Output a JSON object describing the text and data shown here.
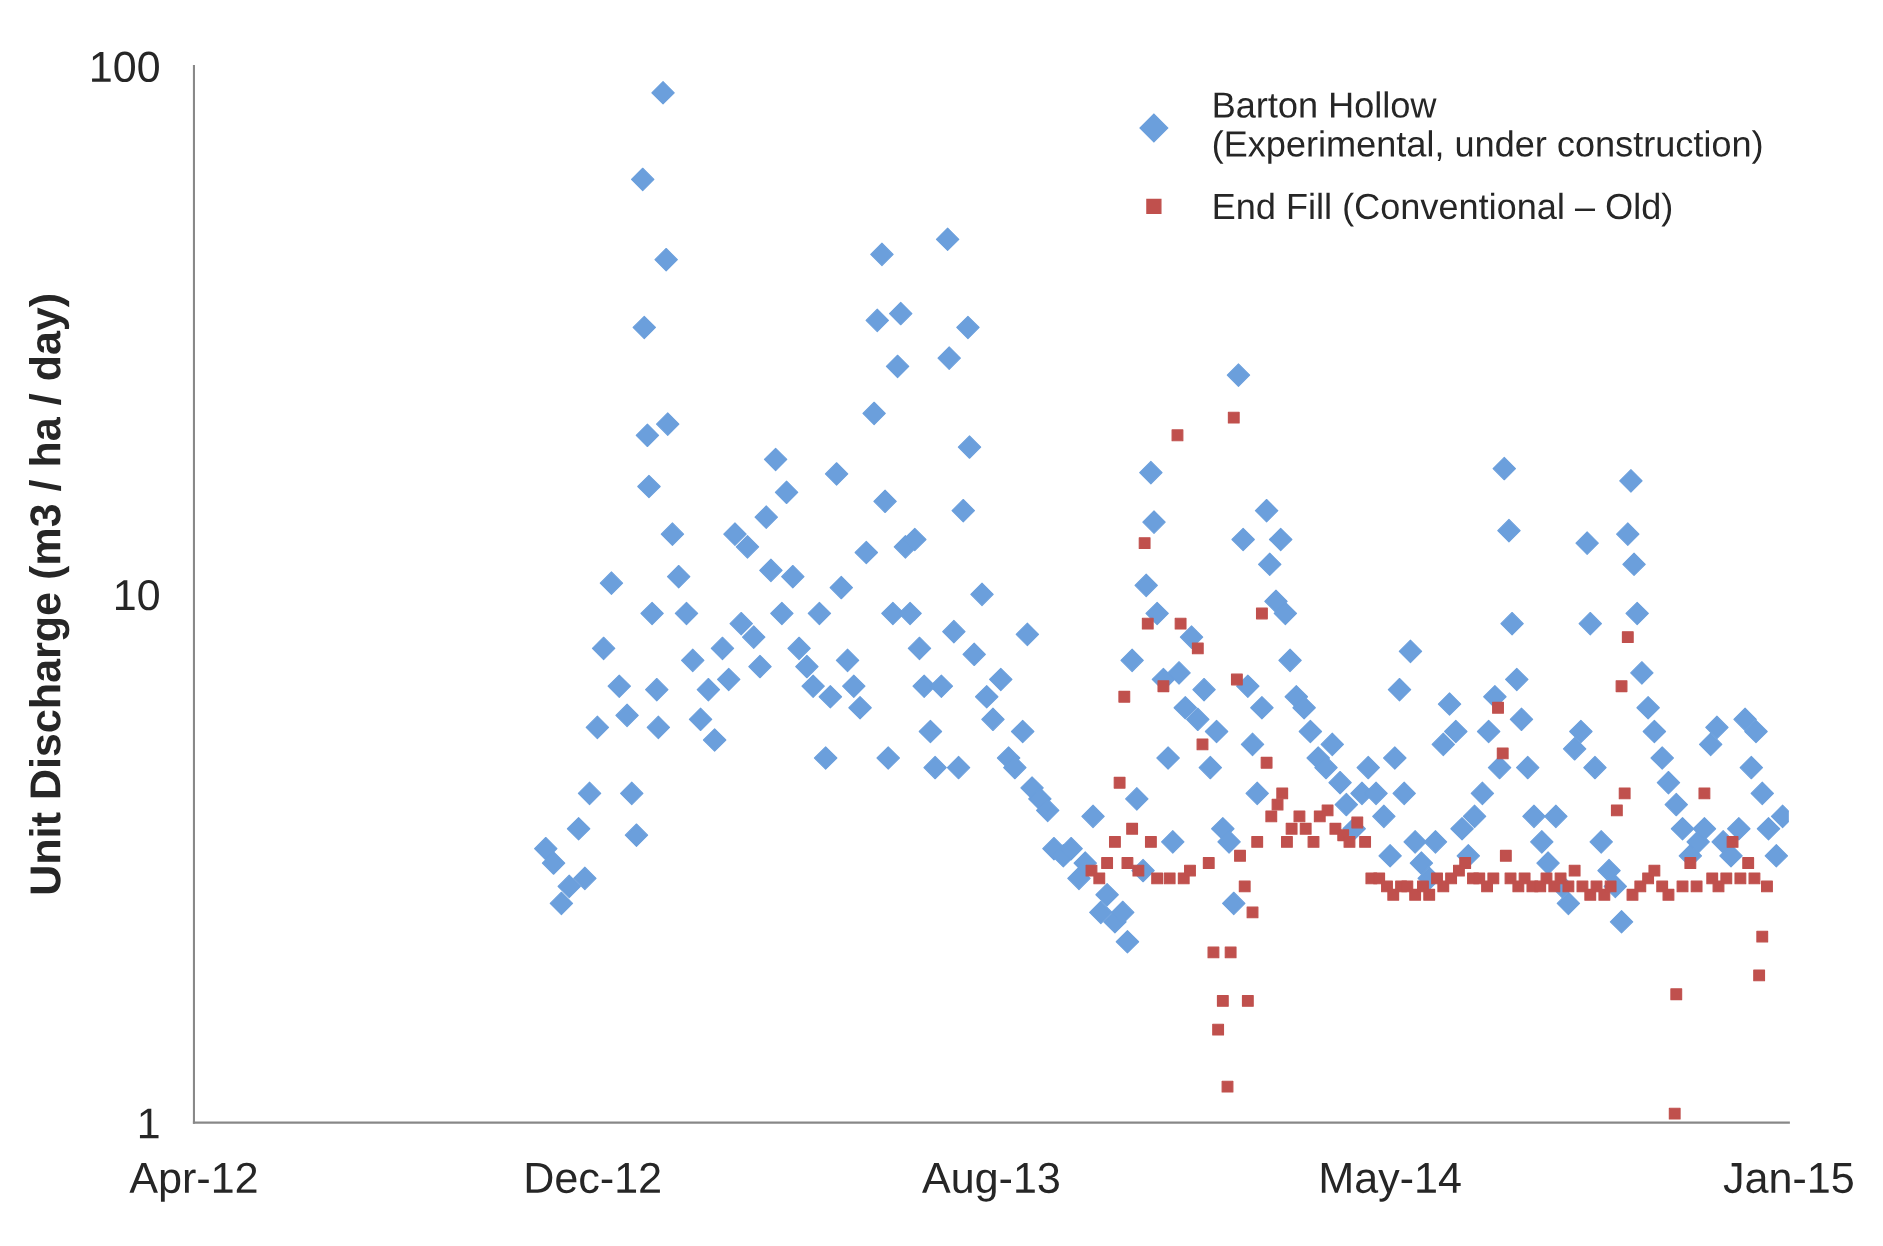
{
  "chart_data": {
    "type": "scatter",
    "ylabel": "Unit Discharge (m3 / ha / day)",
    "log": "y",
    "ylim": [
      1,
      100
    ],
    "yticks": [
      1,
      10,
      100
    ],
    "xlim": [
      "2012-04-01",
      "2015-01-16"
    ],
    "xticks": [
      {
        "value": "2012-04-01",
        "label": "Apr-12"
      },
      {
        "value": "2012-12-12",
        "label": "Dec-12"
      },
      {
        "value": "2013-08-24",
        "label": "Aug-13"
      },
      {
        "value": "2014-05-06",
        "label": "May-14"
      },
      {
        "value": "2015-01-16",
        "label": "Jan-15"
      }
    ],
    "grid": false,
    "legend": "top right",
    "series": [
      {
        "name": "Barton Hollow\n(Experimental, under construction)",
        "color": "#6b9fdc",
        "marker": "diamond",
        "x": [
          "2012-11-12",
          "2012-11-17",
          "2012-11-22",
          "2012-11-27",
          "2012-12-03",
          "2012-12-07",
          "2012-12-10",
          "2012-12-15",
          "2012-12-19",
          "2012-12-24",
          "2012-12-29",
          "2013-01-03",
          "2013-01-06",
          "2013-01-09",
          "2013-01-13",
          "2013-01-14",
          "2013-01-16",
          "2013-01-17",
          "2013-01-19",
          "2013-01-22",
          "2013-01-23",
          "2013-01-26",
          "2013-01-28",
          "2013-01-29",
          "2013-02-01",
          "2013-02-05",
          "2013-02-10",
          "2013-02-14",
          "2013-02-19",
          "2013-02-24",
          "2013-02-28",
          "2013-03-05",
          "2013-03-09",
          "2013-03-13",
          "2013-03-17",
          "2013-03-21",
          "2013-03-25",
          "2013-03-29",
          "2013-04-02",
          "2013-04-05",
          "2013-04-08",
          "2013-04-12",
          "2013-04-15",
          "2013-04-19",
          "2013-04-23",
          "2013-04-28",
          "2013-05-02",
          "2013-05-06",
          "2013-05-10",
          "2013-05-13",
          "2013-05-17",
          "2013-05-20",
          "2013-05-24",
          "2013-05-28",
          "2013-06-01",
          "2013-06-05",
          "2013-06-10",
          "2013-06-12",
          "2013-06-15",
          "2013-06-17",
          "2013-06-19",
          "2013-06-22",
          "2013-06-25",
          "2013-06-27",
          "2013-06-30",
          "2013-07-03",
          "2013-07-06",
          "2013-07-09",
          "2013-07-12",
          "2013-07-16",
          "2013-07-19",
          "2013-07-23",
          "2013-07-27",
          "2013-07-28",
          "2013-07-31",
          "2013-08-03",
          "2013-08-06",
          "2013-08-09",
          "2013-08-10",
          "2013-08-13",
          "2013-08-18",
          "2013-08-21",
          "2013-08-25",
          "2013-08-30",
          "2013-09-04",
          "2013-09-08",
          "2013-09-13",
          "2013-09-16",
          "2013-09-19",
          "2013-09-24",
          "2013-09-29",
          "2013-10-03",
          "2013-10-09",
          "2013-10-14",
          "2013-10-19",
          "2013-10-23",
          "2013-10-28",
          "2013-11-02",
          "2013-11-06",
          "2013-11-11",
          "2013-11-16",
          "2013-11-19",
          "2013-11-22",
          "2013-11-25",
          "2013-11-29",
          "2013-12-01",
          "2013-12-04",
          "2013-12-06",
          "2013-12-08",
          "2013-12-12",
          "2013-12-15",
          "2013-12-18",
          "2013-12-22",
          "2013-12-26",
          "2013-12-30",
          "2014-01-03",
          "2014-01-07",
          "2014-01-11",
          "2014-01-15",
          "2014-01-19",
          "2014-01-23",
          "2014-01-26",
          "2014-01-29",
          "2014-02-01",
          "2014-02-04",
          "2014-02-07",
          "2014-02-10",
          "2014-02-13",
          "2014-02-16",
          "2014-02-18",
          "2014-02-22",
          "2014-02-25",
          "2014-02-28",
          "2014-03-03",
          "2014-03-07",
          "2014-03-12",
          "2014-03-16",
          "2014-03-21",
          "2014-03-26",
          "2014-03-30",
          "2014-04-04",
          "2014-04-08",
          "2014-04-13",
          "2014-04-18",
          "2014-04-22",
          "2014-04-27",
          "2014-05-02",
          "2014-05-06",
          "2014-05-09",
          "2014-05-12",
          "2014-05-15",
          "2014-05-19",
          "2014-05-22",
          "2014-05-26",
          "2014-05-31",
          "2014-06-04",
          "2014-06-09",
          "2014-06-13",
          "2014-06-17",
          "2014-06-21",
          "2014-06-25",
          "2014-06-29",
          "2014-07-04",
          "2014-07-08",
          "2014-07-12",
          "2014-07-15",
          "2014-07-18",
          "2014-07-21",
          "2014-07-23",
          "2014-07-26",
          "2014-07-29",
          "2014-08-02",
          "2014-08-06",
          "2014-08-11",
          "2014-08-15",
          "2014-08-20",
          "2014-08-24",
          "2014-08-28",
          "2014-09-01",
          "2014-09-05",
          "2014-09-09",
          "2014-09-11",
          "2014-09-14",
          "2014-09-18",
          "2014-09-23",
          "2014-09-27",
          "2014-10-01",
          "2014-10-05",
          "2014-10-07",
          "2014-10-09",
          "2014-10-11",
          "2014-10-14",
          "2014-10-18",
          "2014-10-22",
          "2014-10-27",
          "2014-10-31",
          "2014-11-05",
          "2014-11-09",
          "2014-11-14",
          "2014-11-19",
          "2014-11-23",
          "2014-11-27",
          "2014-12-01",
          "2014-12-05",
          "2014-12-10",
          "2014-12-15",
          "2014-12-19",
          "2014-12-23",
          "2014-12-26",
          "2014-12-30",
          "2015-01-03",
          "2015-01-08",
          "2015-01-12"
        ],
        "values": [
          3.3,
          3.1,
          2.6,
          2.8,
          3.6,
          2.9,
          4.2,
          5.6,
          7.9,
          10.5,
          6.7,
          5.9,
          4.2,
          3.5,
          61,
          32,
          20,
          16,
          9.2,
          6.6,
          5.6,
          89,
          43,
          21,
          13,
          10.8,
          9.2,
          7.5,
          5.8,
          6.6,
          5.3,
          7.9,
          6.9,
          13,
          8.8,
          12.3,
          8.3,
          7.3,
          14,
          11.1,
          18,
          9.2,
          15.6,
          10.8,
          7.9,
          7.3,
          6.7,
          9.2,
          4.9,
          6.4,
          16.9,
          10.3,
          7.5,
          6.7,
          6.1,
          12,
          22,
          33,
          44,
          15,
          4.9,
          9.2,
          27,
          34,
          12.3,
          9.2,
          12.7,
          7.9,
          6.7,
          5.5,
          4.7,
          6.7,
          47,
          28,
          8.5,
          4.7,
          14.4,
          32,
          19,
          7.7,
          10,
          6.4,
          5.8,
          6.9,
          4.9,
          4.7,
          5.5,
          8.4,
          4.3,
          4.1,
          3.9,
          3.3,
          3.2,
          3.3,
          2.9,
          3.1,
          3.8,
          2.5,
          2.7,
          2.4,
          2.5,
          2.2,
          7.5,
          4.1,
          3.0,
          10.4,
          17,
          13.7,
          9.2,
          6.9,
          4.9,
          3.4,
          7.1,
          6.1,
          8.3,
          5.8,
          6.6,
          4.7,
          5.5,
          3.6,
          3.4,
          2.6,
          26,
          12.7,
          6.7,
          5.2,
          4.2,
          6.1,
          14.4,
          11.4,
          9.7,
          12.7,
          9.2,
          7.5,
          6.4,
          6.1,
          5.5,
          4.9,
          4.7,
          5.2,
          4.4,
          4.0,
          3.6,
          4.2,
          4.7,
          4.2,
          3.8,
          3.2,
          4.9,
          6.6,
          4.2,
          7.8,
          3.4,
          3.1,
          2.9,
          3.4,
          5.2,
          6.2,
          5.5,
          3.6,
          3.2,
          3.8,
          4.2,
          5.5,
          6.4,
          4.7,
          17.3,
          13.2,
          8.8,
          6.9,
          5.8,
          4.7,
          3.8,
          3.4,
          3.1,
          3.8,
          2.8,
          2.6,
          5.1,
          5.5,
          12.5,
          8.8,
          4.7,
          3.4,
          3.0,
          2.8,
          2.4,
          13,
          16.4,
          11.4,
          9.2,
          7.1,
          6.1,
          5.5,
          4.9,
          4.4,
          4.0,
          3.6,
          3.2,
          3.4,
          3.6,
          5.2,
          5.6,
          3.4,
          3.2,
          3.6,
          5.8,
          4.7,
          5.5,
          4.2,
          3.6,
          3.2,
          3.8
        ]
      },
      {
        "name": "End Fill (Conventional – Old)",
        "color": "#c0504d",
        "marker": "square",
        "x": [
          "2013-10-27",
          "2013-11-01",
          "2013-11-06",
          "2013-11-11",
          "2013-11-14",
          "2013-11-17",
          "2013-11-19",
          "2013-11-22",
          "2013-11-26",
          "2013-11-30",
          "2013-12-02",
          "2013-12-04",
          "2013-12-08",
          "2013-12-12",
          "2013-12-16",
          "2013-12-21",
          "2013-12-23",
          "2013-12-25",
          "2013-12-29",
          "2014-01-03",
          "2014-01-06",
          "2014-01-10",
          "2014-01-13",
          "2014-01-16",
          "2014-01-19",
          "2014-01-22",
          "2014-01-24",
          "2014-01-26",
          "2014-01-28",
          "2014-01-30",
          "2014-02-02",
          "2014-02-04",
          "2014-02-07",
          "2014-02-10",
          "2014-02-13",
          "2014-02-16",
          "2014-02-19",
          "2014-02-23",
          "2014-02-26",
          "2014-03-01",
          "2014-03-04",
          "2014-03-09",
          "2014-03-13",
          "2014-03-18",
          "2014-03-22",
          "2014-03-27",
          "2014-04-01",
          "2014-04-06",
          "2014-04-10",
          "2014-04-15",
          "2014-04-20",
          "2014-04-24",
          "2014-04-29",
          "2014-05-04",
          "2014-05-08",
          "2014-05-13",
          "2014-05-17",
          "2014-05-22",
          "2014-05-27",
          "2014-05-31",
          "2014-06-05",
          "2014-06-09",
          "2014-06-14",
          "2014-06-19",
          "2014-06-23",
          "2014-06-28",
          "2014-07-02",
          "2014-07-07",
          "2014-07-11",
          "2014-07-14",
          "2014-07-17",
          "2014-07-19",
          "2014-07-22",
          "2014-07-27",
          "2014-07-31",
          "2014-08-05",
          "2014-08-10",
          "2014-08-14",
          "2014-08-19",
          "2014-08-23",
          "2014-08-28",
          "2014-09-01",
          "2014-09-06",
          "2014-09-11",
          "2014-09-15",
          "2014-09-20",
          "2014-09-24",
          "2014-09-28",
          "2014-10-01",
          "2014-10-03",
          "2014-10-05",
          "2014-10-08",
          "2014-10-13",
          "2014-10-18",
          "2014-10-22",
          "2014-10-27",
          "2014-10-31",
          "2014-11-04",
          "2014-11-05",
          "2014-11-09",
          "2014-11-14",
          "2014-11-18",
          "2014-11-23",
          "2014-11-28",
          "2014-12-02",
          "2014-12-07",
          "2014-12-11",
          "2014-12-16",
          "2014-12-21",
          "2014-12-25",
          "2014-12-28",
          "2014-12-30",
          "2015-01-02"
        ],
        "values": [
          3.0,
          2.9,
          3.1,
          3.4,
          4.4,
          6.4,
          3.1,
          3.6,
          3.0,
          12.5,
          8.8,
          3.4,
          2.9,
          6.7,
          2.9,
          20,
          8.8,
          2.9,
          3.0,
          7.9,
          5.2,
          3.1,
          2.1,
          1.5,
          1.7,
          1.17,
          2.1,
          21.6,
          6.9,
          3.2,
          2.8,
          1.7,
          2.5,
          3.4,
          9.2,
          4.8,
          3.8,
          4.0,
          4.2,
          3.4,
          3.6,
          3.8,
          3.6,
          3.4,
          3.8,
          3.9,
          3.6,
          3.5,
          3.4,
          3.7,
          3.4,
          2.9,
          2.9,
          2.8,
          2.7,
          2.8,
          2.8,
          2.7,
          2.8,
          2.7,
          2.9,
          2.8,
          2.9,
          3.0,
          3.1,
          2.9,
          2.9,
          2.8,
          2.9,
          6.1,
          5.0,
          3.2,
          2.9,
          2.8,
          2.9,
          2.8,
          2.8,
          2.9,
          2.8,
          2.9,
          2.8,
          3.0,
          2.8,
          2.7,
          2.8,
          2.7,
          2.8,
          3.9,
          6.7,
          4.2,
          8.3,
          2.7,
          2.8,
          2.9,
          3.0,
          2.8,
          2.7,
          1.04,
          1.75,
          2.8,
          3.1,
          2.8,
          4.2,
          2.9,
          2.8,
          2.9,
          3.4,
          2.9,
          3.1,
          2.9,
          1.9,
          2.25,
          2.8
        ]
      }
    ]
  }
}
